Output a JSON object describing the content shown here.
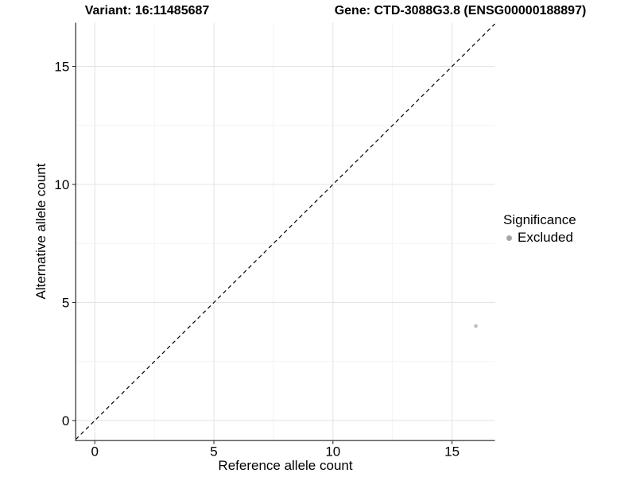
{
  "chart_data": {
    "type": "scatter",
    "titles": {
      "left": "Variant: 16:11485687",
      "right": "Gene: CTD-3088G3.8 (ENSG00000188897)"
    },
    "xlabel": "Reference allele count",
    "ylabel": "Alternative allele count",
    "xlim": [
      -0.8,
      16.8
    ],
    "ylim": [
      -0.85,
      16.85
    ],
    "xticks": [
      0,
      5,
      10,
      15
    ],
    "yticks": [
      0,
      5,
      10,
      15
    ],
    "x_minor_ticks": [
      2.5,
      7.5,
      12.5
    ],
    "y_minor_ticks": [
      2.5,
      7.5,
      12.5
    ],
    "grid": {
      "major_color": "#e4e4e4",
      "minor_color": "#f0f0f0"
    },
    "axis_line_color": "#474747",
    "tick_color": "#333333",
    "identity_line": {
      "style": "dashed",
      "color": "#000000",
      "from": [
        -0.8,
        -0.8
      ],
      "to": [
        16.8,
        16.8
      ]
    },
    "series": [
      {
        "name": "Excluded",
        "color": "#bfbfbf",
        "points": [
          {
            "x": 16,
            "y": 4
          }
        ]
      }
    ],
    "legend": {
      "title": "Significance",
      "position": "right",
      "entries": [
        {
          "label": "Excluded",
          "color": "#a6a6a6"
        }
      ]
    }
  }
}
